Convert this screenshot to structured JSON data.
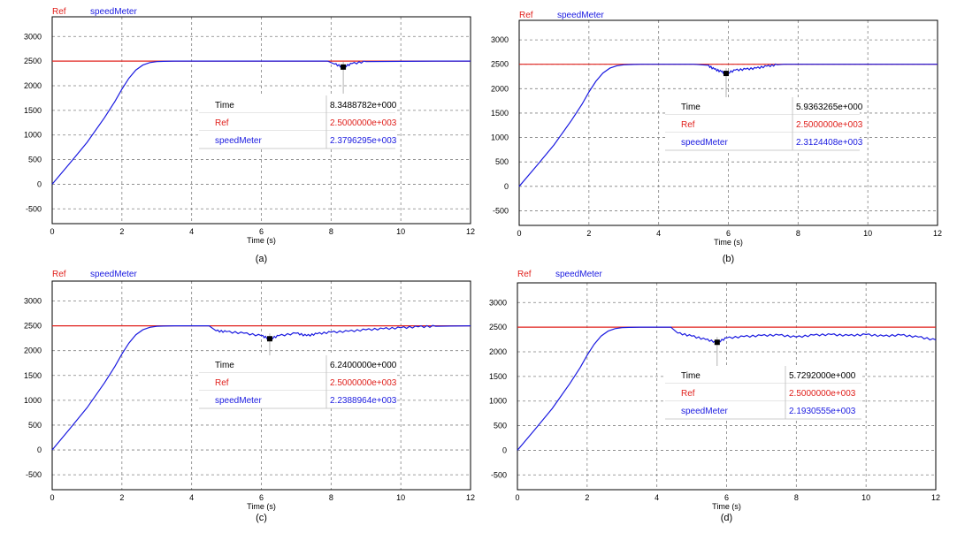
{
  "colors": {
    "ref": "#e0201c",
    "speed": "#1a1ae0",
    "grid": "#808080",
    "frame": "#000000",
    "readout_line": "#bdbdbd",
    "marker": "#000000"
  },
  "chart_data": [
    {
      "type": "line",
      "caption": "(a)",
      "legend": [
        "Ref",
        "speedMeter"
      ],
      "xlabel": "Time (s)",
      "xlim": [
        0,
        12
      ],
      "ylim": [
        -800,
        3400
      ],
      "xticks": [
        "0",
        "2",
        "4",
        "6",
        "8",
        "10",
        "12"
      ],
      "yticks": [
        "-500",
        "0",
        "500",
        "1000",
        "1500",
        "2000",
        "2500",
        "3000"
      ],
      "grid": true,
      "series": [
        {
          "name": "Ref",
          "x": [
            0,
            12
          ],
          "y": [
            2500,
            2500
          ]
        },
        {
          "name": "speedMeter",
          "x": [
            0,
            0.5,
            1.0,
            1.5,
            1.8,
            2.0,
            2.2,
            2.4,
            2.6,
            2.8,
            3.0,
            3.2,
            3.5,
            4.0,
            5.0,
            6.0,
            7.0,
            7.9,
            8.1,
            8.35,
            8.6,
            9.0,
            10,
            11,
            12
          ],
          "y": [
            0,
            420,
            850,
            1350,
            1680,
            1930,
            2150,
            2320,
            2420,
            2470,
            2490,
            2495,
            2500,
            2500,
            2500,
            2500,
            2500,
            2500,
            2440,
            2380,
            2450,
            2490,
            2495,
            2500,
            2500
          ]
        }
      ],
      "cursor": {
        "x": 8.3488782,
        "y": 2379.6295
      },
      "readout": [
        {
          "label": "Time",
          "value": "8.3488782e+000"
        },
        {
          "label": "Ref",
          "value": "2.5000000e+003"
        },
        {
          "label": "speedMeter",
          "value": "2.3796295e+003"
        }
      ]
    },
    {
      "type": "line",
      "caption": "(b)",
      "legend": [
        "Ref",
        "speedMeter"
      ],
      "xlabel": "Time (s)",
      "xlim": [
        0,
        12
      ],
      "ylim": [
        -800,
        3400
      ],
      "xticks": [
        "0",
        "2",
        "4",
        "6",
        "8",
        "10",
        "12"
      ],
      "yticks": [
        "-500",
        "0",
        "500",
        "1000",
        "1500",
        "2000",
        "2500",
        "3000"
      ],
      "grid": true,
      "series": [
        {
          "name": "Ref",
          "x": [
            0,
            12
          ],
          "y": [
            2500,
            2500
          ]
        },
        {
          "name": "speedMeter",
          "x": [
            0,
            0.5,
            1.0,
            1.5,
            1.8,
            2.0,
            2.2,
            2.4,
            2.6,
            2.8,
            3.0,
            3.2,
            3.5,
            4.0,
            5.0,
            5.4,
            5.6,
            5.8,
            5.94,
            6.2,
            6.5,
            6.8,
            7.1,
            7.4,
            7.6,
            8.0,
            10,
            12
          ],
          "y": [
            0,
            420,
            850,
            1350,
            1680,
            1930,
            2150,
            2320,
            2420,
            2470,
            2490,
            2495,
            2500,
            2500,
            2500,
            2480,
            2400,
            2350,
            2312,
            2380,
            2400,
            2420,
            2460,
            2490,
            2500,
            2500,
            2500,
            2500
          ]
        }
      ],
      "cursor": {
        "x": 5.9363265,
        "y": 2312.4408
      },
      "readout": [
        {
          "label": "Time",
          "value": "5.9363265e+000"
        },
        {
          "label": "Ref",
          "value": "2.5000000e+003"
        },
        {
          "label": "speedMeter",
          "value": "2.3124408e+003"
        }
      ]
    },
    {
      "type": "line",
      "caption": "(c)",
      "legend": [
        "Ref",
        "speedMeter"
      ],
      "xlabel": "Time (s)",
      "xlim": [
        0,
        12
      ],
      "ylim": [
        -800,
        3400
      ],
      "xticks": [
        "0",
        "2",
        "4",
        "6",
        "8",
        "10",
        "12"
      ],
      "yticks": [
        "-500",
        "0",
        "500",
        "1000",
        "1500",
        "2000",
        "2500",
        "3000"
      ],
      "grid": true,
      "series": [
        {
          "name": "Ref",
          "x": [
            0,
            12
          ],
          "y": [
            2500,
            2500
          ]
        },
        {
          "name": "speedMeter",
          "x": [
            0,
            0.5,
            1.0,
            1.5,
            1.8,
            2.0,
            2.2,
            2.4,
            2.6,
            2.8,
            3.0,
            3.2,
            3.5,
            4.0,
            4.5,
            4.7,
            5.0,
            5.5,
            6.0,
            6.24,
            6.5,
            7.0,
            7.3,
            7.6,
            8.0,
            8.5,
            9.0,
            9.5,
            10.0,
            10.5,
            11,
            12
          ],
          "y": [
            0,
            420,
            850,
            1350,
            1680,
            1930,
            2150,
            2320,
            2420,
            2470,
            2490,
            2495,
            2500,
            2500,
            2500,
            2400,
            2380,
            2350,
            2300,
            2239,
            2300,
            2350,
            2300,
            2340,
            2370,
            2390,
            2420,
            2440,
            2460,
            2480,
            2490,
            2500
          ]
        }
      ],
      "cursor": {
        "x": 6.24,
        "y": 2238.8964
      },
      "readout": [
        {
          "label": "Time",
          "value": "6.2400000e+000"
        },
        {
          "label": "Ref",
          "value": "2.5000000e+003"
        },
        {
          "label": "speedMeter",
          "value": "2.2388964e+003"
        }
      ]
    },
    {
      "type": "line",
      "caption": "(d)",
      "legend": [
        "Ref",
        "speedMeter"
      ],
      "xlabel": "Time (s)",
      "xlim": [
        0,
        12
      ],
      "ylim": [
        -800,
        3400
      ],
      "xticks": [
        "0",
        "2",
        "4",
        "6",
        "8",
        "10",
        "12"
      ],
      "yticks": [
        "-500",
        "0",
        "500",
        "1000",
        "1500",
        "2000",
        "2500",
        "3000"
      ],
      "grid": true,
      "series": [
        {
          "name": "Ref",
          "x": [
            0,
            12
          ],
          "y": [
            2500,
            2500
          ]
        },
        {
          "name": "speedMeter",
          "x": [
            0,
            0.5,
            1.0,
            1.5,
            1.8,
            2.0,
            2.2,
            2.4,
            2.6,
            2.8,
            3.0,
            3.2,
            3.5,
            4.0,
            4.4,
            4.6,
            5.0,
            5.4,
            5.73,
            6.0,
            6.5,
            7.0,
            7.5,
            8.0,
            8.5,
            9.0,
            9.5,
            10.0,
            10.5,
            11.0,
            11.5,
            12.0
          ],
          "y": [
            0,
            420,
            850,
            1350,
            1680,
            1930,
            2150,
            2320,
            2420,
            2470,
            2490,
            2495,
            2500,
            2500,
            2500,
            2380,
            2320,
            2250,
            2193,
            2280,
            2310,
            2330,
            2340,
            2300,
            2340,
            2350,
            2330,
            2350,
            2320,
            2340,
            2300,
            2240
          ]
        }
      ],
      "cursor": {
        "x": 5.7292,
        "y": 2193.0555
      },
      "readout": [
        {
          "label": "Time",
          "value": "5.7292000e+000"
        },
        {
          "label": "Ref",
          "value": "2.5000000e+003"
        },
        {
          "label": "speedMeter",
          "value": "2.1930555e+003"
        }
      ]
    }
  ]
}
